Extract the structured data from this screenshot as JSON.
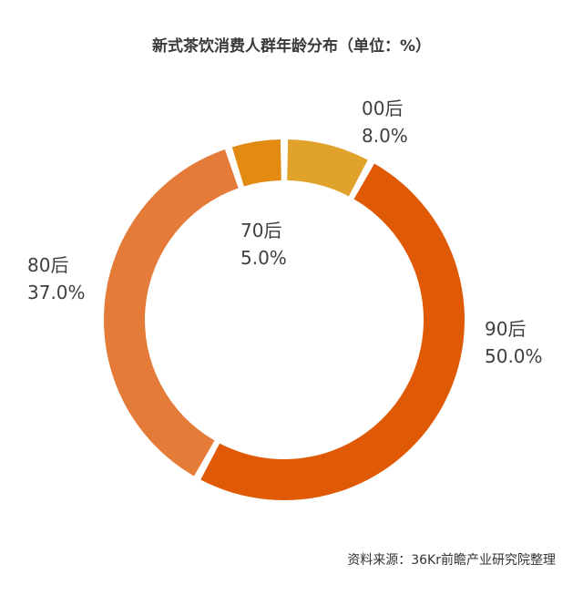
{
  "title": "新式茶饮消费人群年龄分布（单位：%）",
  "source": "资料来源：36Kr前瞻产业研究院整理",
  "chart_data": {
    "type": "pie",
    "title": "新式茶饮消费人群年龄分布（单位：%）",
    "unit": "%",
    "slices": [
      {
        "label": "00后",
        "value": 8.0,
        "value_label": "8.0%",
        "color": "#E0A22A"
      },
      {
        "label": "90后",
        "value": 50.0,
        "value_label": "50.0%",
        "color": "#E05A06"
      },
      {
        "label": "80后",
        "value": 37.0,
        "value_label": "37.0%",
        "color": "#E47B39"
      },
      {
        "label": "70后",
        "value": 5.0,
        "value_label": "5.0%",
        "color": "#E28A12"
      }
    ]
  }
}
